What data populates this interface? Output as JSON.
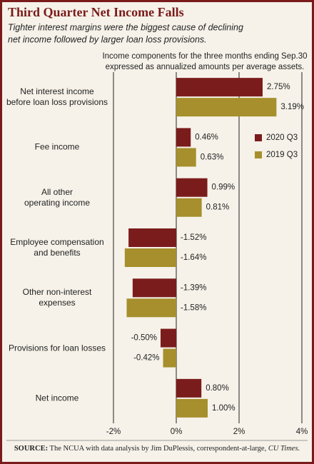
{
  "chart_data": {
    "type": "hbar",
    "title": "Third Quarter Net Income Falls",
    "subtitle": [
      "Tighter interest margins were the biggest cause of declining",
      "net income followed by larger loan loss provisions."
    ],
    "note": [
      "Income components for the three months ending Sep.30",
      "expressed as annualized amounts per average assets."
    ],
    "categories": [
      "Net interest income\nbefore loan loss provisions",
      "Fee income",
      "All other\noperating income",
      "Employee compensation\nand benefits",
      "Other non-interest\nexpenses",
      "Provisions for loan losses",
      "Net income"
    ],
    "series": [
      {
        "name": "2020 Q3",
        "color": "#7b1c1c",
        "values": [
          2.75,
          0.46,
          0.99,
          -1.52,
          -1.39,
          -0.5,
          0.8
        ],
        "value_labels": [
          "2.75%",
          "0.46%",
          "0.99%",
          "-1.52%",
          "-1.39%",
          "-0.50%",
          "0.80%"
        ]
      },
      {
        "name": "2019 Q3",
        "color": "#a68f2c",
        "values": [
          3.19,
          0.63,
          0.81,
          -1.64,
          -1.58,
          -0.42,
          1.0
        ],
        "value_labels": [
          "3.19%",
          "0.63%",
          "0.81%",
          "-1.64%",
          "-1.58%",
          "-0.42%",
          "1.00%"
        ]
      }
    ],
    "xlim": [
      -2,
      4
    ],
    "xticks": [
      {
        "value": -2,
        "label": "-2%"
      },
      {
        "value": 0,
        "label": "0%"
      },
      {
        "value": 2,
        "label": "2%"
      },
      {
        "value": 4,
        "label": "4%"
      }
    ],
    "grid": true,
    "legend": "right"
  },
  "source": {
    "label": "SOURCE:",
    "text": "The NCUA with data analysis by Jim DuPlessis, correspondent-at-large,",
    "publication": "CU Times."
  }
}
